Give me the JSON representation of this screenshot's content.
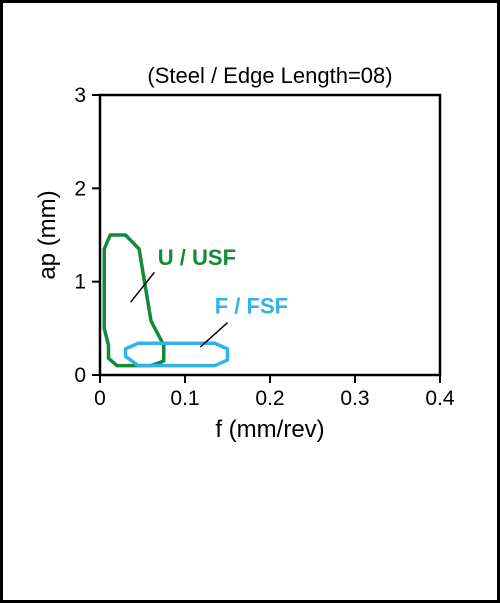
{
  "chart": {
    "type": "region-outline",
    "title": "(Steel / Edge Length=08)",
    "title_fontsize": 22,
    "background_color": "#ffffff",
    "frame_color": "#000000",
    "axis_color": "#000000",
    "axis_linewidth": 2.5,
    "tick_fontsize": 21,
    "label_fontsize": 24,
    "x": {
      "label": "f (mm/rev)",
      "lim": [
        0,
        0.4
      ],
      "ticks": [
        0,
        0.1,
        0.2,
        0.3,
        0.4
      ],
      "tick_labels": [
        "0",
        "0.1",
        "0.2",
        "0.3",
        "0.4"
      ]
    },
    "y": {
      "label": "ap (mm)",
      "lim": [
        0,
        3
      ],
      "ticks": [
        0,
        1,
        2,
        3
      ],
      "tick_labels": [
        "0",
        "1",
        "2",
        "3"
      ]
    },
    "series": {
      "U": {
        "label": "U / USF",
        "color": "#128a3a",
        "linewidth": 3.5,
        "points": [
          [
            0.01,
            0.32
          ],
          [
            0.005,
            0.5
          ],
          [
            0.005,
            1.35
          ],
          [
            0.012,
            1.5
          ],
          [
            0.03,
            1.5
          ],
          [
            0.046,
            1.35
          ],
          [
            0.06,
            0.58
          ],
          [
            0.075,
            0.32
          ],
          [
            0.075,
            0.15
          ],
          [
            0.06,
            0.1
          ],
          [
            0.02,
            0.1
          ],
          [
            0.01,
            0.18
          ],
          [
            0.01,
            0.32
          ]
        ],
        "label_pos": [
          0.068,
          1.18
        ],
        "leader": {
          "from": [
            0.064,
            1.1
          ],
          "to": [
            0.036,
            0.78
          ]
        }
      },
      "F": {
        "label": "F / FSF",
        "color": "#33b1e8",
        "linewidth": 3.5,
        "points": [
          [
            0.03,
            0.2
          ],
          [
            0.03,
            0.28
          ],
          [
            0.045,
            0.34
          ],
          [
            0.135,
            0.34
          ],
          [
            0.15,
            0.28
          ],
          [
            0.15,
            0.16
          ],
          [
            0.135,
            0.1
          ],
          [
            0.045,
            0.1
          ],
          [
            0.03,
            0.2
          ]
        ],
        "label_pos": [
          0.135,
          0.66
        ],
        "leader": {
          "from": [
            0.15,
            0.56
          ],
          "to": [
            0.118,
            0.3
          ]
        }
      }
    }
  }
}
